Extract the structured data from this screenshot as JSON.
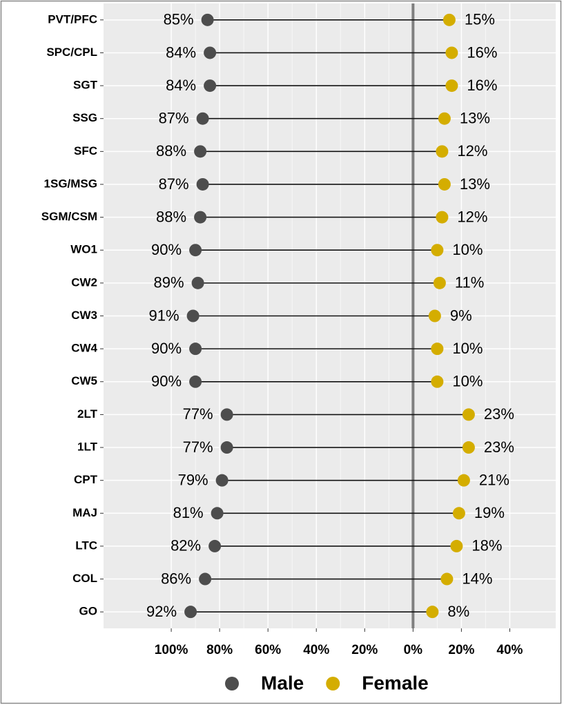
{
  "chart_data": {
    "type": "dumbbell",
    "categories": [
      "PVT/PFC",
      "SPC/CPL",
      "SGT",
      "SSG",
      "SFC",
      "1SG/MSG",
      "SGM/CSM",
      "WO1",
      "CW2",
      "CW3",
      "CW4",
      "CW5",
      "2LT",
      "1LT",
      "CPT",
      "MAJ",
      "LTC",
      "COL",
      "GO"
    ],
    "series": [
      {
        "name": "Male",
        "color": "#4d4d4d",
        "values": [
          -85,
          -84,
          -84,
          -87,
          -88,
          -87,
          -88,
          -90,
          -89,
          -91,
          -90,
          -90,
          -77,
          -77,
          -79,
          -81,
          -82,
          -86,
          -92
        ],
        "value_labels": [
          "85%",
          "84%",
          "84%",
          "87%",
          "88%",
          "87%",
          "88%",
          "90%",
          "89%",
          "91%",
          "90%",
          "90%",
          "77%",
          "77%",
          "79%",
          "81%",
          "82%",
          "86%",
          "92%"
        ]
      },
      {
        "name": "Female",
        "color": "#d4ad00",
        "values": [
          15,
          16,
          16,
          13,
          12,
          13,
          12,
          10,
          11,
          9,
          10,
          10,
          23,
          23,
          21,
          19,
          18,
          14,
          8
        ],
        "value_labels": [
          "15%",
          "16%",
          "16%",
          "13%",
          "12%",
          "13%",
          "12%",
          "10%",
          "11%",
          "9%",
          "10%",
          "10%",
          "23%",
          "23%",
          "21%",
          "19%",
          "18%",
          "14%",
          "8%"
        ]
      }
    ],
    "xlim": [
      -128,
      59
    ],
    "xticks": [
      {
        "value": -100,
        "label": "100%"
      },
      {
        "value": -80,
        "label": "80%"
      },
      {
        "value": -60,
        "label": "60%"
      },
      {
        "value": -40,
        "label": "40%"
      },
      {
        "value": -20,
        "label": "20%"
      },
      {
        "value": 0,
        "label": "0%"
      },
      {
        "value": 20,
        "label": "20%"
      },
      {
        "value": 40,
        "label": "40%"
      }
    ],
    "grid": true,
    "legend": "bottom"
  }
}
